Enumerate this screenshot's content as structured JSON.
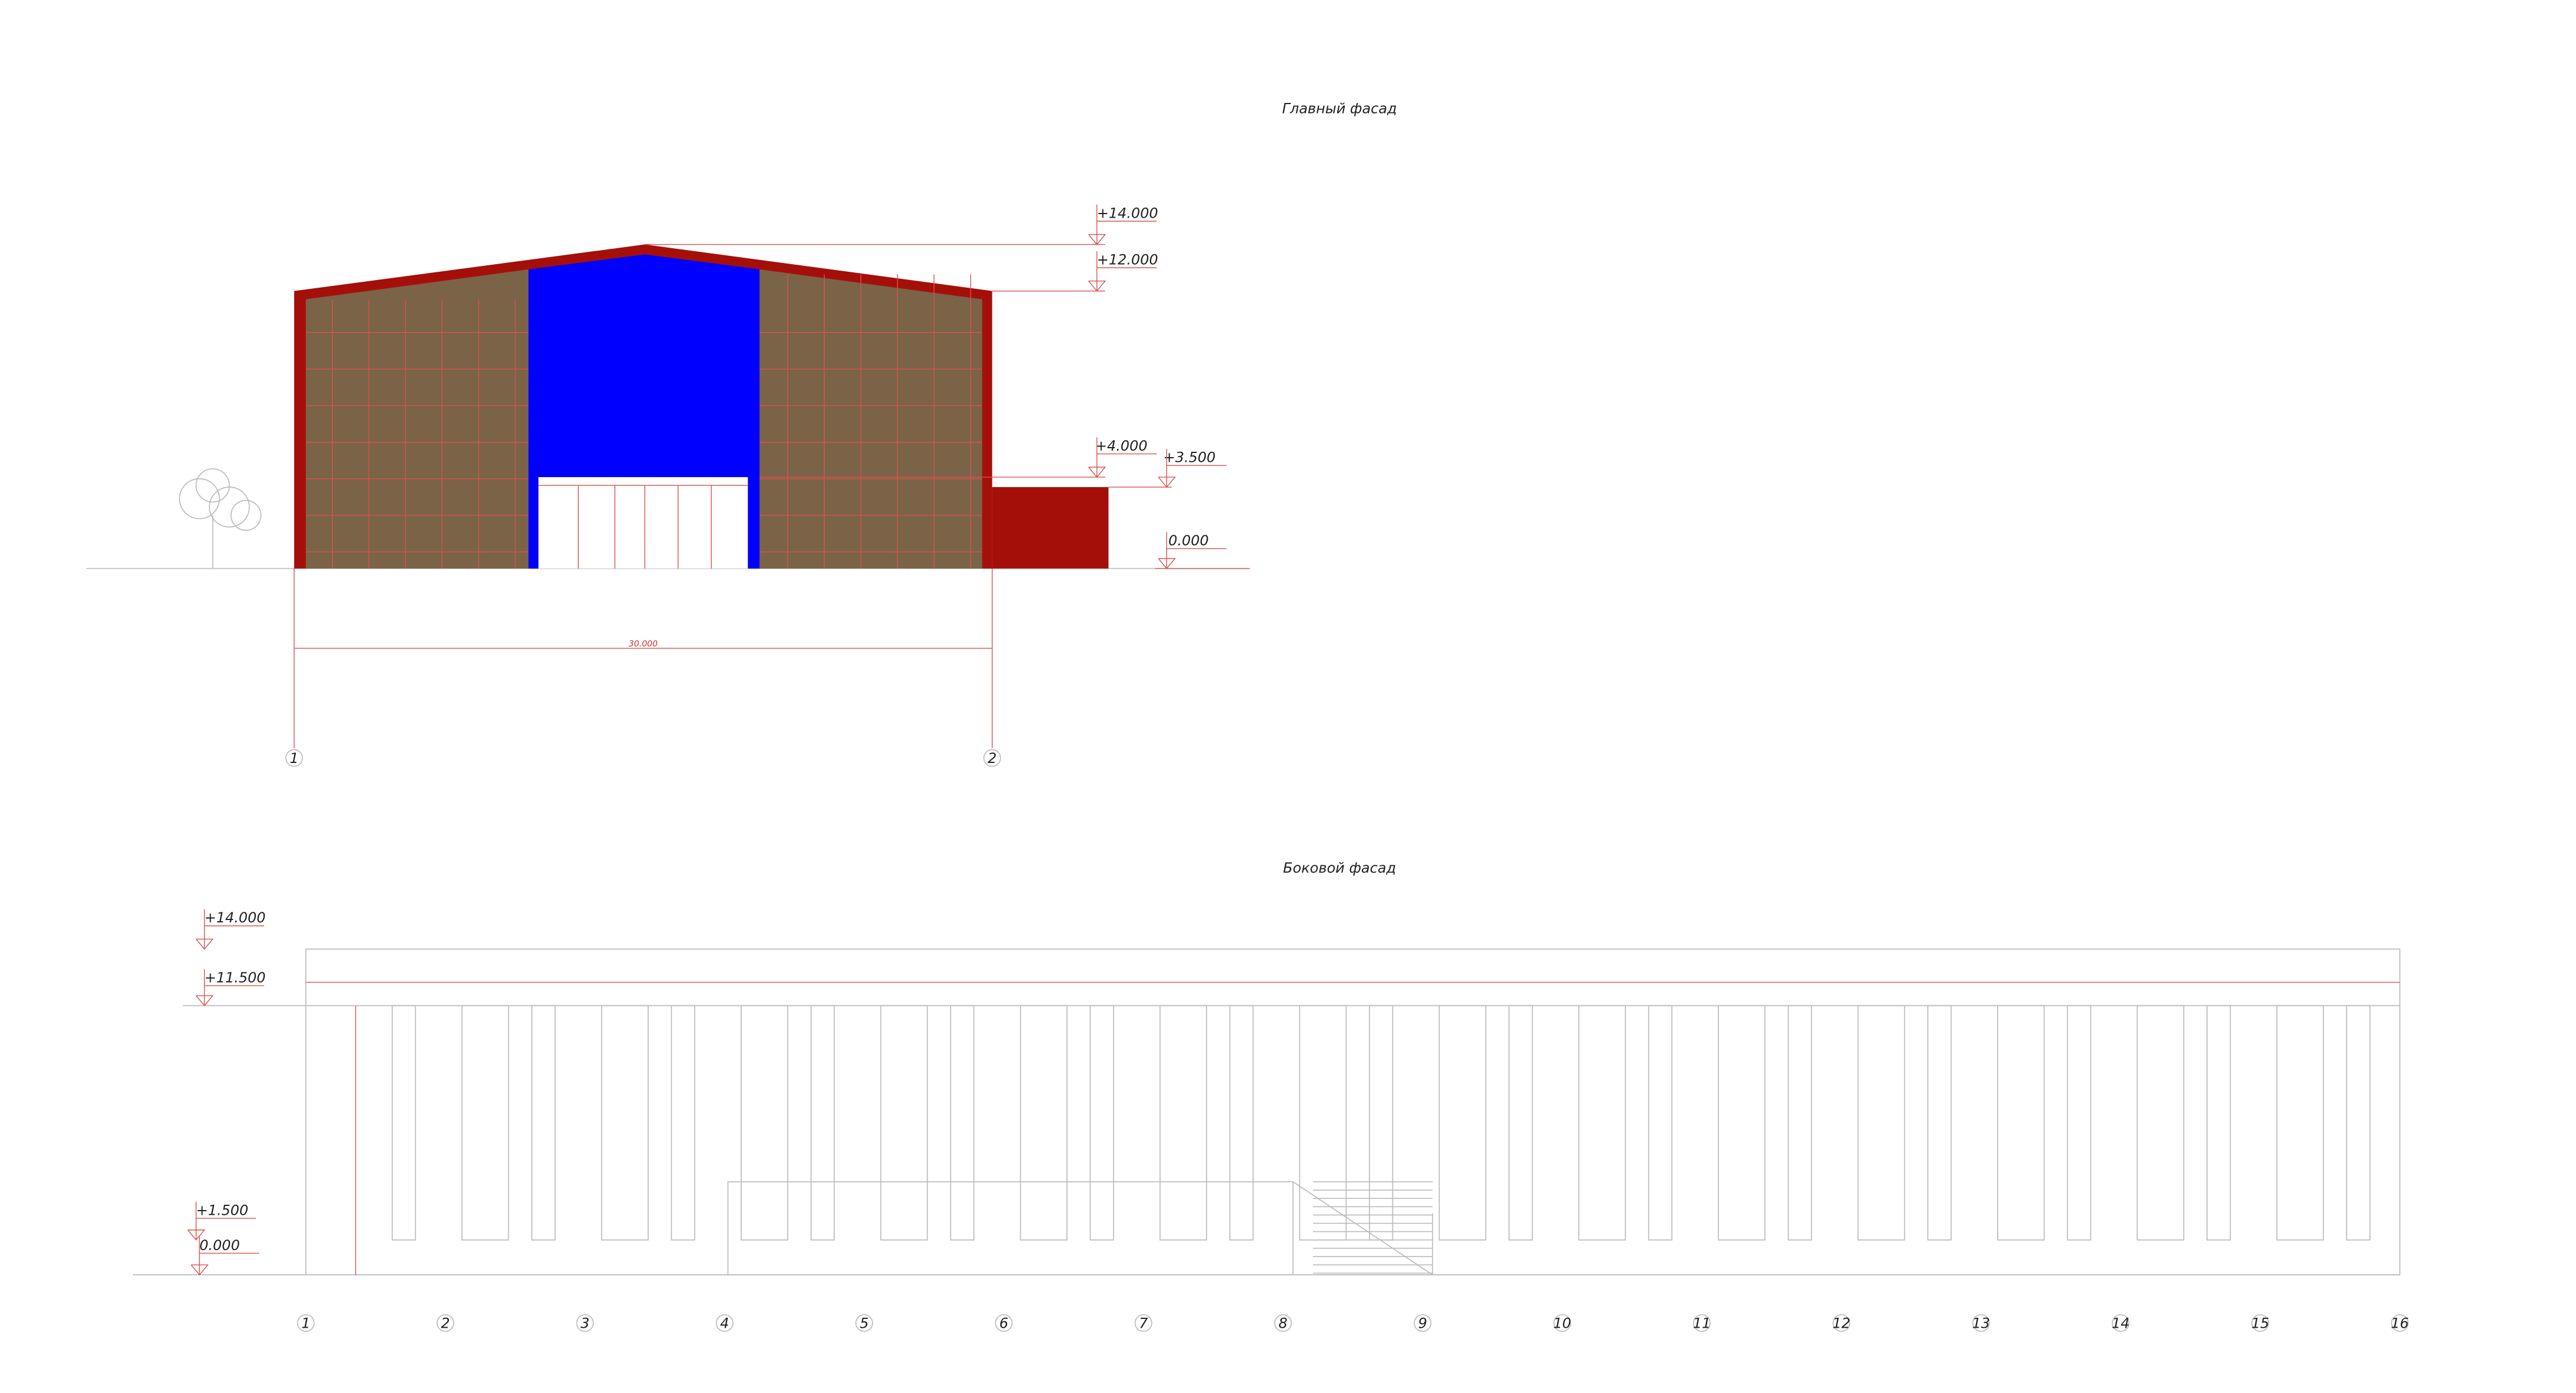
{
  "main_facade": {
    "title": "Главный фасад",
    "levels": [
      "+14.000",
      "+12.000",
      "+4.000",
      "+3.500",
      "0.000"
    ],
    "dimension": "30.000",
    "axes": [
      "1",
      "2"
    ]
  },
  "side_facade": {
    "title": "Боковой фасад",
    "levels": [
      "+14.000",
      "+11.500",
      "+1.500",
      "0.000"
    ],
    "axes": [
      "1",
      "2",
      "3",
      "4",
      "5",
      "6",
      "7",
      "8",
      "9",
      "10",
      "11",
      "12",
      "13",
      "14",
      "15",
      "16"
    ]
  }
}
